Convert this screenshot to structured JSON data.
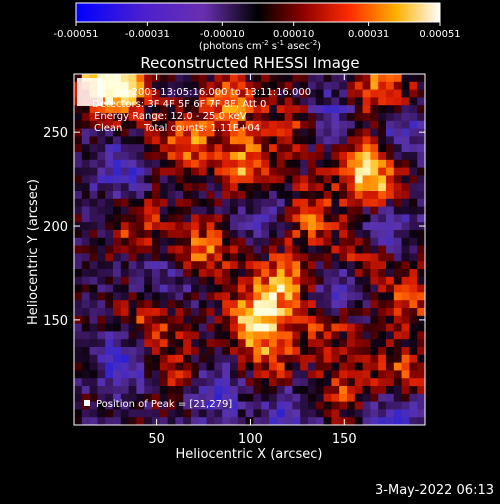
{
  "chart_data": {
    "type": "heatmap",
    "title": "Reconstructed RHESSI Image",
    "xlabel": "Heliocentric X (arcsec)",
    "ylabel": "Heliocentric Y (arcsec)",
    "x_ticks": [
      50,
      100,
      150
    ],
    "y_ticks": [
      150,
      200,
      250
    ],
    "xlim": [
      6,
      193
    ],
    "ylim": [
      94,
      281
    ],
    "colorbar": {
      "ticks": [
        "-0.00051",
        "-0.00031",
        "-0.00010",
        "0.00010",
        "0.00031",
        "0.00051"
      ],
      "tick_values": [
        -0.00051,
        -0.00031,
        -0.0001,
        0.0001,
        0.00031,
        0.00051
      ],
      "range": [
        -0.00051,
        0.00051
      ],
      "unit_label": {
        "p1": "(photons cm",
        "e1": "-2",
        "p2": " s",
        "e2": "-1",
        "p3": " asec",
        "e3": "-2",
        "p4": ")"
      }
    },
    "annotations": {
      "time_range": "Jul-2003 13:05:16.000 to 13:11:16.000",
      "detectors": "Detectors: 3F 4F 5F 6F 7F 8F, Att 0",
      "energy": "Energy Range: 12.0 - 25.0 keV",
      "clean": "Clean",
      "total_counts": "Total counts: 1.11E+04",
      "peak": "Position of Peak = [21,279]"
    },
    "bright_sources": [
      {
        "x": 103,
        "y": 150,
        "intensity": 1.0
      },
      {
        "x": 118,
        "y": 170,
        "intensity": 0.75
      },
      {
        "x": 98,
        "y": 232,
        "intensity": 0.8
      },
      {
        "x": 64,
        "y": 244,
        "intensity": 0.7
      },
      {
        "x": 75,
        "y": 186,
        "intensity": 0.7
      },
      {
        "x": 160,
        "y": 234,
        "intensity": 0.85
      },
      {
        "x": 170,
        "y": 272,
        "intensity": 0.75
      },
      {
        "x": 88,
        "y": 265,
        "intensity": 0.7
      },
      {
        "x": 30,
        "y": 273,
        "intensity": 0.75
      },
      {
        "x": 22,
        "y": 278,
        "intensity": 0.8
      },
      {
        "x": 130,
        "y": 206,
        "intensity": 0.65
      },
      {
        "x": 168,
        "y": 218,
        "intensity": 0.6
      },
      {
        "x": 48,
        "y": 150,
        "intensity": 0.6
      },
      {
        "x": 140,
        "y": 148,
        "intensity": 0.55
      },
      {
        "x": 160,
        "y": 186,
        "intensity": 0.55
      },
      {
        "x": 184,
        "y": 160,
        "intensity": 0.5
      },
      {
        "x": 40,
        "y": 200,
        "intensity": 0.5
      },
      {
        "x": 125,
        "y": 255,
        "intensity": 0.6
      },
      {
        "x": 150,
        "y": 112,
        "intensity": 0.5
      },
      {
        "x": 180,
        "y": 122,
        "intensity": 0.5
      },
      {
        "x": 60,
        "y": 120,
        "intensity": 0.4
      },
      {
        "x": 112,
        "y": 128,
        "intensity": 0.45
      }
    ],
    "dim_regions": [
      {
        "x": 170,
        "y": 200,
        "intensity": -0.7
      },
      {
        "x": 140,
        "y": 258,
        "intensity": -0.6
      },
      {
        "x": 30,
        "y": 230,
        "intensity": -0.55
      },
      {
        "x": 180,
        "y": 250,
        "intensity": -0.55
      },
      {
        "x": 32,
        "y": 128,
        "intensity": -0.6
      },
      {
        "x": 55,
        "y": 170,
        "intensity": -0.45
      },
      {
        "x": 80,
        "y": 112,
        "intensity": -0.55
      },
      {
        "x": 120,
        "y": 100,
        "intensity": -0.5
      },
      {
        "x": 175,
        "y": 100,
        "intensity": -0.5
      },
      {
        "x": 145,
        "y": 165,
        "intensity": -0.55
      },
      {
        "x": 108,
        "y": 210,
        "intensity": -0.45
      }
    ]
  },
  "footer": {
    "date": "3-May-2022 06:13"
  }
}
